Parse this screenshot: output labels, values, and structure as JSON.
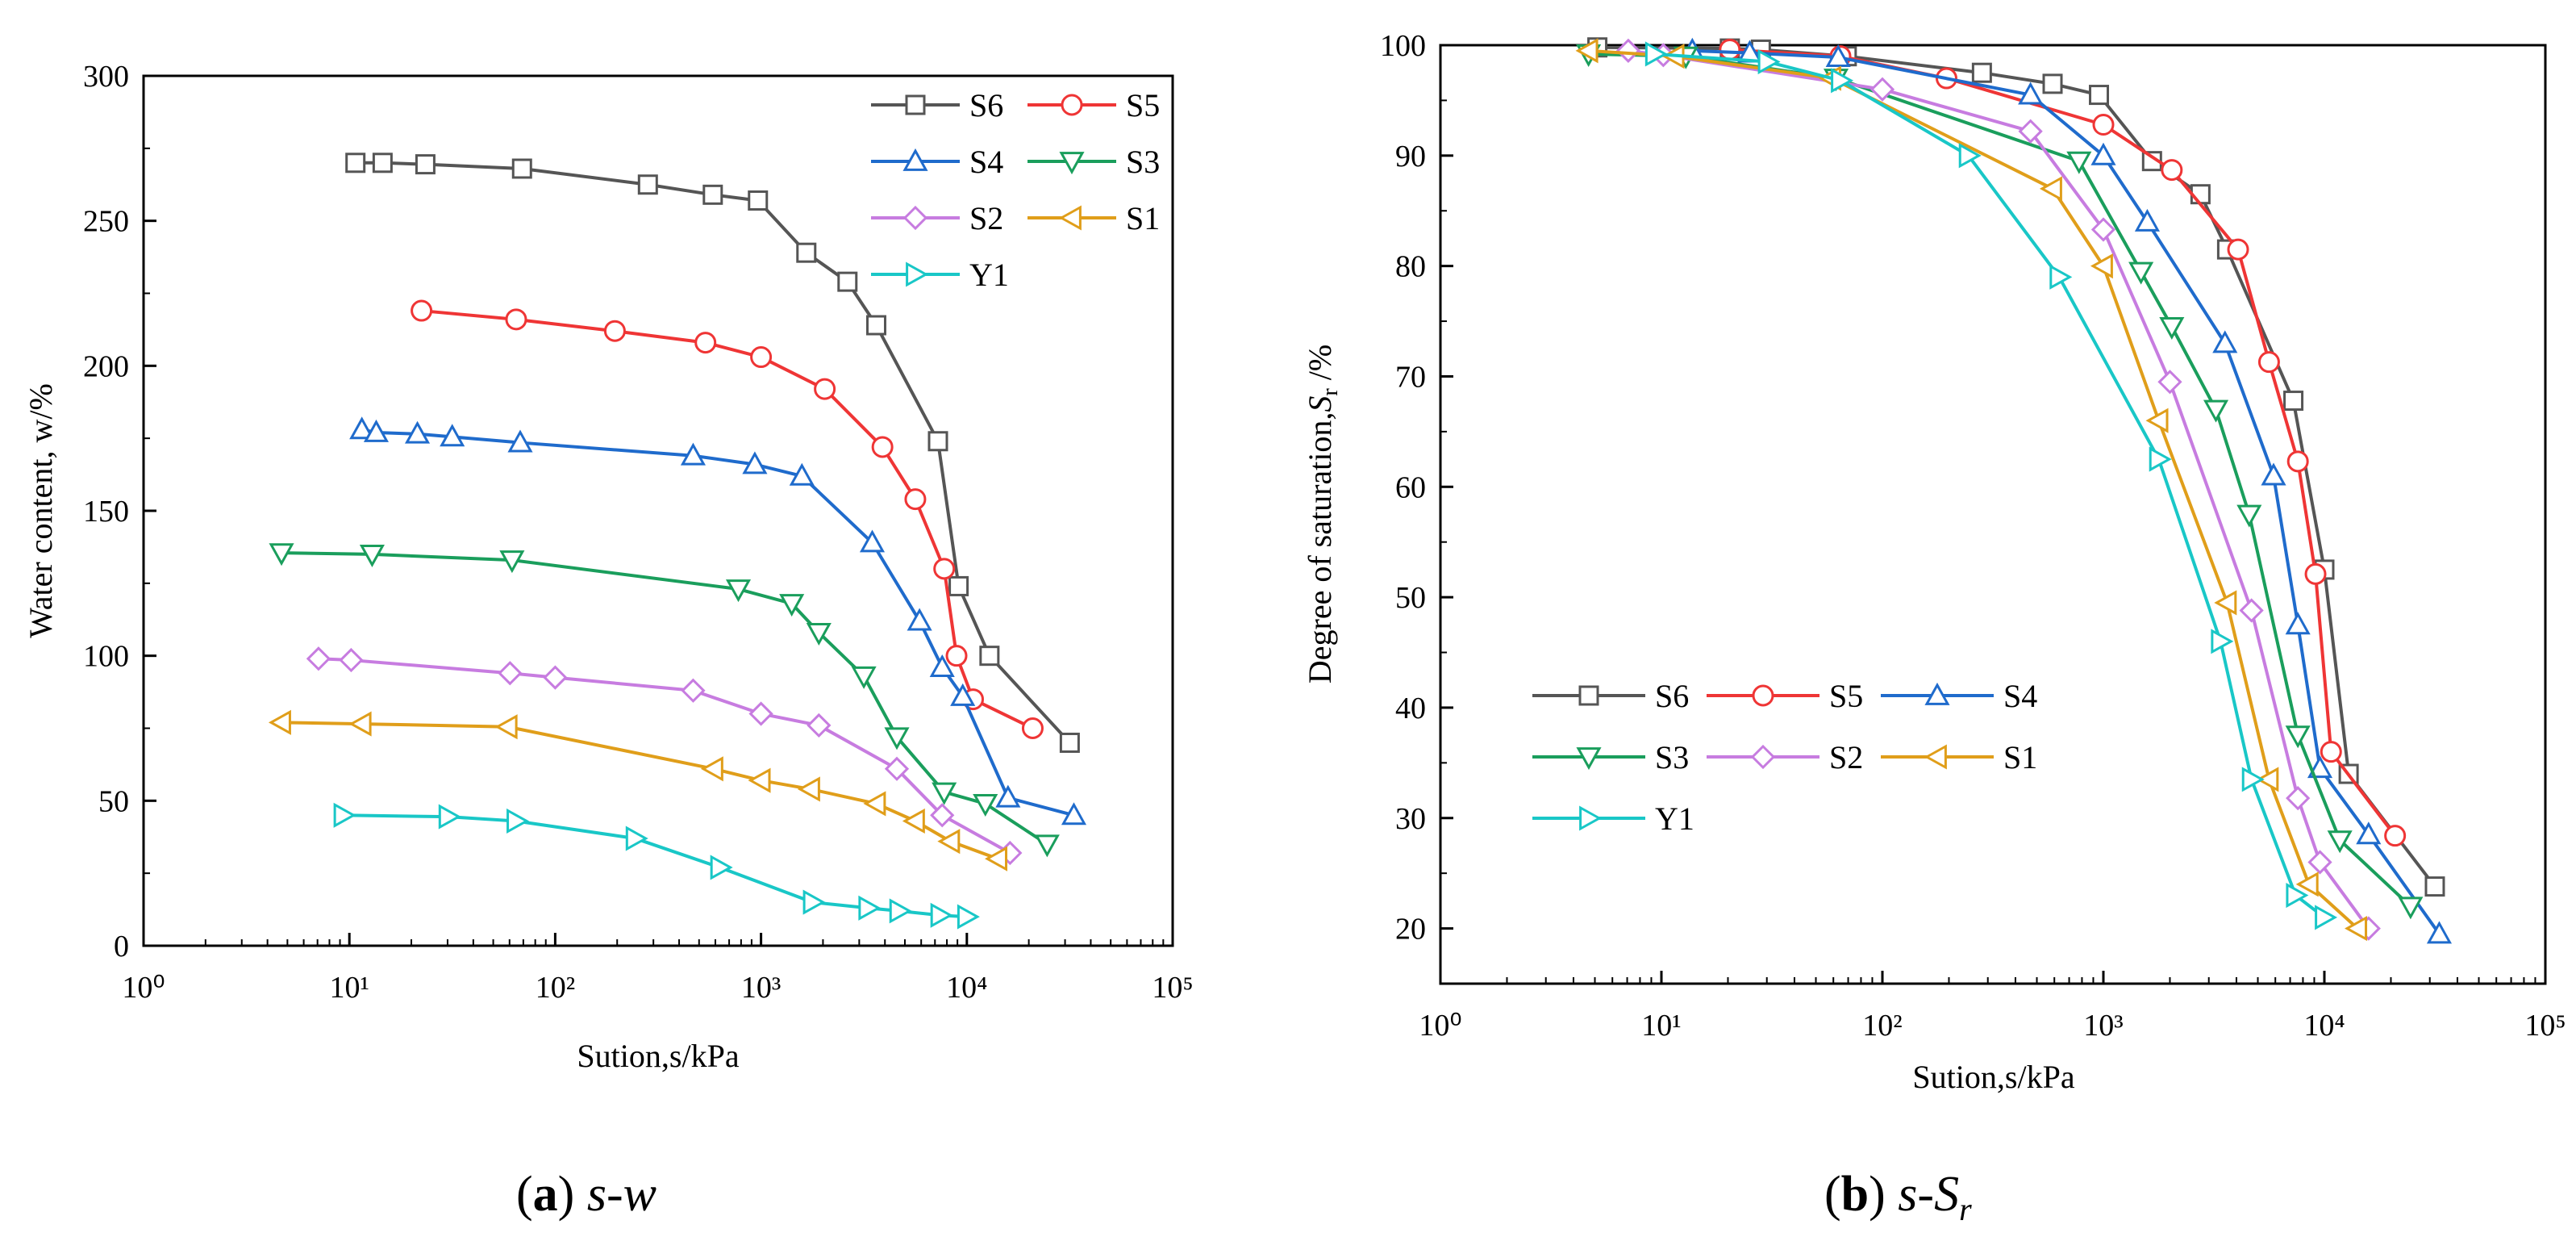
{
  "chart_data": [
    {
      "type": "line",
      "panel": "a",
      "caption": {
        "label": "a",
        "text": "s-w"
      },
      "x_scale": "log",
      "xlim": [
        1,
        100000
      ],
      "ylim": [
        0,
        300
      ],
      "xlabel": "Sution,s/kPa",
      "ylabel": "Water content, w/%",
      "x_tick_labels": [
        "10⁰",
        "10¹",
        "10²",
        "10³",
        "10⁴",
        "10⁵"
      ],
      "y_ticks": [
        0,
        50,
        100,
        150,
        200,
        250,
        300
      ],
      "legend": {
        "position": "top-right",
        "columns": 2,
        "entries": [
          "S6",
          "S5",
          "S4",
          "S3",
          "S2",
          "S1",
          "Y1"
        ]
      },
      "series": [
        {
          "name": "S6",
          "color": "#555555",
          "marker": "square",
          "points": [
            [
              10.7,
              270
            ],
            [
              14.5,
              270
            ],
            [
              23.4,
              269.5
            ],
            [
              69,
              268
            ],
            [
              282,
              262.5
            ],
            [
              583,
              259
            ],
            [
              966,
              257
            ],
            [
              1660,
              239
            ],
            [
              2630,
              229
            ],
            [
              3630,
              214
            ],
            [
              7240,
              174
            ],
            [
              9120,
              124
            ],
            [
              12880,
              100
            ],
            [
              31620,
              70
            ]
          ]
        },
        {
          "name": "S5",
          "color": "#EF3535",
          "marker": "circle",
          "points": [
            [
              22.4,
              219
            ],
            [
              64.6,
              216
            ],
            [
              195,
              212
            ],
            [
              537,
              208
            ],
            [
              1000,
              203
            ],
            [
              2040,
              192
            ],
            [
              3890,
              172
            ],
            [
              5620,
              154
            ],
            [
              7760,
              130
            ],
            [
              8910,
              100
            ],
            [
              10720,
              85
            ],
            [
              20890,
              75
            ]
          ]
        },
        {
          "name": "S4",
          "color": "#1F6BCC",
          "marker": "triangle-up",
          "points": [
            [
              11.5,
              178
            ],
            [
              13.5,
              177
            ],
            [
              21.4,
              176.5
            ],
            [
              31.6,
              175.5
            ],
            [
              67.6,
              173.5
            ],
            [
              468,
              169
            ],
            [
              933,
              166
            ],
            [
              1580,
              162
            ],
            [
              3470,
              139
            ],
            [
              5890,
              112
            ],
            [
              7590,
              96
            ],
            [
              9550,
              86
            ],
            [
              15850,
              51
            ],
            [
              33110,
              45
            ]
          ]
        },
        {
          "name": "S3",
          "color": "#1A9E5C",
          "marker": "triangle-down",
          "points": [
            [
              4.68,
              135.5
            ],
            [
              12.9,
              135
            ],
            [
              61.7,
              133
            ],
            [
              776,
              123
            ],
            [
              1410,
              118
            ],
            [
              1910,
              108
            ],
            [
              3160,
              93
            ],
            [
              4570,
              72
            ],
            [
              7760,
              53
            ],
            [
              12300,
              49
            ],
            [
              24550,
              35
            ]
          ]
        },
        {
          "name": "S2",
          "color": "#C77CE0",
          "marker": "diamond",
          "points": [
            [
              7.08,
              99
            ],
            [
              10.2,
              98.5
            ],
            [
              60.3,
              94
            ],
            [
              100,
              92.5
            ],
            [
              468,
              88
            ],
            [
              1000,
              80
            ],
            [
              1910,
              76
            ],
            [
              4570,
              61
            ],
            [
              7590,
              45
            ],
            [
              16210,
              32
            ]
          ]
        },
        {
          "name": "S1",
          "color": "#E09E1A",
          "marker": "triangle-left",
          "points": [
            [
              4.68,
              77
            ],
            [
              11.5,
              76.5
            ],
            [
              58.9,
              75.5
            ],
            [
              589,
              61
            ],
            [
              1000,
              57
            ],
            [
              1740,
              54
            ],
            [
              3630,
              49
            ],
            [
              5620,
              43
            ],
            [
              8320,
              36
            ],
            [
              14130,
              30
            ]
          ]
        },
        {
          "name": "Y1",
          "color": "#19C7C7",
          "marker": "triangle-right",
          "points": [
            [
              9.33,
              45
            ],
            [
              30.2,
              44.5
            ],
            [
              64.6,
              43
            ],
            [
              245,
              37
            ],
            [
              631,
              27
            ],
            [
              1780,
              15
            ],
            [
              3310,
              13
            ],
            [
              4680,
              12
            ],
            [
              7410,
              10.5
            ],
            [
              10000,
              10
            ]
          ]
        }
      ]
    },
    {
      "type": "line",
      "panel": "b",
      "caption": {
        "label": "b",
        "text": "s-S",
        "subscript": "r"
      },
      "x_scale": "log",
      "xlim": [
        1,
        100000
      ],
      "ylim": [
        15,
        100
      ],
      "xlabel": "Sution,s/kPa",
      "ylabel_main": "Degree of saturation,",
      "ylabel_var": "S",
      "ylabel_sub": "r",
      "ylabel_unit": " /%",
      "x_tick_labels": [
        "10⁰",
        "10¹",
        "10²",
        "10³",
        "10⁴",
        "10⁵"
      ],
      "y_ticks": [
        20,
        30,
        40,
        50,
        60,
        70,
        80,
        90,
        100
      ],
      "legend": {
        "position": "bottom-left",
        "columns": 3,
        "entries": [
          "S6",
          "S5",
          "S4",
          "S3",
          "S2",
          "S1",
          "Y1"
        ]
      },
      "series": [
        {
          "name": "S6",
          "color": "#555555",
          "marker": "square",
          "points": [
            [
              5.13,
              99.8
            ],
            [
              20.4,
              99.7
            ],
            [
              28.2,
              99.6
            ],
            [
              69,
              99
            ],
            [
              282,
              97.5
            ],
            [
              589,
              96.5
            ],
            [
              955,
              95.5
            ],
            [
              1660,
              89.5
            ],
            [
              2750,
              86.5
            ],
            [
              3630,
              81.5
            ],
            [
              7240,
              67.8
            ],
            [
              10000,
              52.5
            ],
            [
              12880,
              34
            ],
            [
              31620,
              23.8
            ]
          ]
        },
        {
          "name": "S5",
          "color": "#EF3535",
          "marker": "circle",
          "points": [
            [
              20.4,
              99.6
            ],
            [
              64.6,
              99
            ],
            [
              195,
              97
            ],
            [
              1000,
              92.8
            ],
            [
              2040,
              88.7
            ],
            [
              4070,
              81.5
            ],
            [
              5620,
              71.3
            ],
            [
              7590,
              62.3
            ],
            [
              9120,
              52.1
            ],
            [
              10720,
              36
            ],
            [
              20890,
              28.4
            ]
          ]
        },
        {
          "name": "S4",
          "color": "#1F6BCC",
          "marker": "triangle-up",
          "points": [
            [
              13.8,
              99.5
            ],
            [
              25.1,
              99.3
            ],
            [
              63.1,
              98.9
            ],
            [
              468,
              95.5
            ],
            [
              1000,
              90
            ],
            [
              1580,
              84
            ],
            [
              3550,
              73
            ],
            [
              5890,
              61
            ],
            [
              7590,
              47.5
            ],
            [
              9550,
              34.5
            ],
            [
              15850,
              28.5
            ],
            [
              33110,
              19.5
            ]
          ]
        },
        {
          "name": "S3",
          "color": "#1A9E5C",
          "marker": "triangle-down",
          "points": [
            [
              4.68,
              99.2
            ],
            [
              12.9,
              99
            ],
            [
              61.7,
              97
            ],
            [
              776,
              89.5
            ],
            [
              1480,
              79.5
            ],
            [
              2040,
              74.5
            ],
            [
              3230,
              67
            ],
            [
              4570,
              57.5
            ],
            [
              7590,
              37.5
            ],
            [
              11750,
              28
            ],
            [
              24550,
              22
            ]
          ]
        },
        {
          "name": "S2",
          "color": "#C77CE0",
          "marker": "diamond",
          "points": [
            [
              7.08,
              99.5
            ],
            [
              10.2,
              99.1
            ],
            [
              100,
              96
            ],
            [
              468,
              92.2
            ],
            [
              1000,
              83.3
            ],
            [
              2000,
              69.5
            ],
            [
              4680,
              48.8
            ],
            [
              7590,
              31.8
            ],
            [
              9550,
              26
            ],
            [
              15850,
              20
            ]
          ]
        },
        {
          "name": "S1",
          "color": "#E09E1A",
          "marker": "triangle-left",
          "points": [
            [
              4.68,
              99.5
            ],
            [
              11.5,
              99
            ],
            [
              58.9,
              97
            ],
            [
              589,
              87
            ],
            [
              1000,
              80
            ],
            [
              1780,
              66
            ],
            [
              3630,
              49.5
            ],
            [
              5620,
              33.5
            ],
            [
              8510,
              24
            ],
            [
              14130,
              20
            ]
          ]
        },
        {
          "name": "Y1",
          "color": "#19C7C7",
          "marker": "triangle-right",
          "points": [
            [
              9.33,
              99.2
            ],
            [
              30.2,
              98.5
            ],
            [
              64.6,
              96.8
            ],
            [
              245,
              90
            ],
            [
              631,
              79
            ],
            [
              1780,
              62.5
            ],
            [
              3390,
              46
            ],
            [
              4680,
              33.5
            ],
            [
              7410,
              23
            ],
            [
              10000,
              21
            ]
          ]
        }
      ]
    }
  ]
}
